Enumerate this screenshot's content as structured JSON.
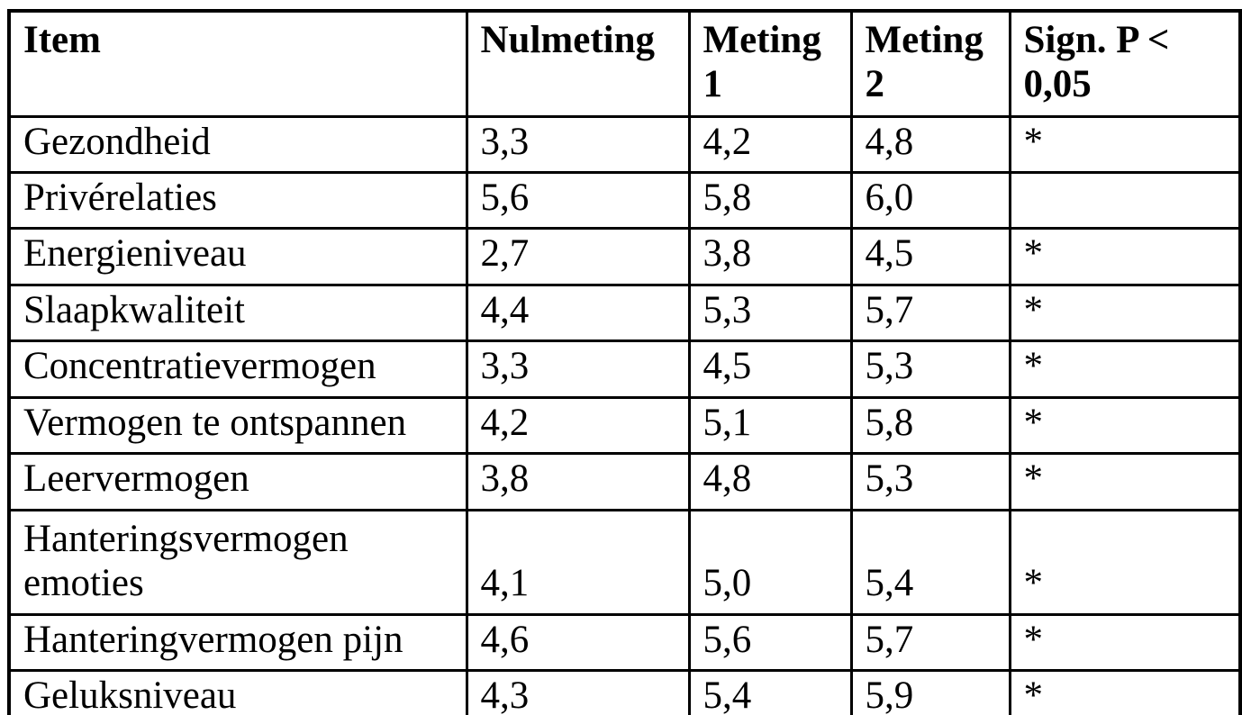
{
  "table": {
    "columns": [
      "Item",
      "Nulmeting",
      "Meting 1",
      "Meting 2",
      "Sign. P < 0,05"
    ],
    "rows": [
      [
        "Gezondheid",
        "3,3",
        "4,2",
        "4,8",
        "*"
      ],
      [
        "Privérelaties",
        "5,6",
        "5,8",
        "6,0",
        ""
      ],
      [
        "Energieniveau",
        "2,7",
        "3,8",
        "4,5",
        "*"
      ],
      [
        "Slaapkwaliteit",
        "4,4",
        "5,3",
        "5,7",
        "*"
      ],
      [
        "Concentratievermogen",
        "3,3",
        "4,5",
        "5,3",
        "*"
      ],
      [
        "Vermogen te ontspannen",
        "4,2",
        "5,1",
        "5,8",
        "*"
      ],
      [
        "Leervermogen",
        "3,8",
        "4,8",
        "5,3",
        "*"
      ],
      [
        "Hanteringsvermogen emoties",
        "4,1",
        "5,0",
        "5,4",
        "*"
      ],
      [
        "Hanteringvermogen pijn",
        "4,6",
        "5,6",
        "5,7",
        "*"
      ],
      [
        "Geluksniveau",
        "4,3",
        "5,4",
        "5,9",
        "*"
      ]
    ],
    "style": {
      "text_color": "#000000",
      "border_color": "#000000",
      "background": "#ffffff"
    }
  }
}
